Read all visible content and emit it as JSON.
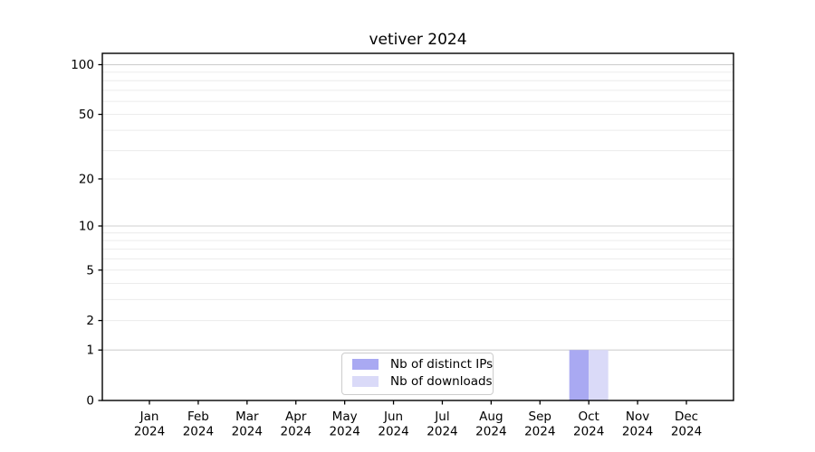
{
  "chart_data": {
    "type": "bar",
    "title": "vetiver 2024",
    "months": [
      "Jan",
      "Feb",
      "Mar",
      "Apr",
      "May",
      "Jun",
      "Jul",
      "Aug",
      "Sep",
      "Oct",
      "Nov",
      "Dec"
    ],
    "year": "2024",
    "series": [
      {
        "name": "Nb of distinct IPs",
        "color": "#a9a9f2",
        "values": [
          0,
          0,
          0,
          0,
          0,
          0,
          0,
          0,
          0,
          1,
          0,
          0
        ]
      },
      {
        "name": "Nb of downloads",
        "color": "#dadaf8",
        "values": [
          0,
          0,
          0,
          0,
          0,
          0,
          0,
          0,
          0,
          1,
          0,
          0
        ]
      }
    ],
    "yscale": "log1p",
    "ymax": 117,
    "ytick_labels": [
      "0",
      "1",
      "2",
      "5",
      "10",
      "20",
      "50",
      "100"
    ],
    "ytick_values": [
      0,
      1,
      2,
      5,
      10,
      20,
      50,
      100
    ],
    "grid_major_values": [
      1,
      10,
      100
    ],
    "grid_minor_values": [
      2,
      3,
      4,
      5,
      6,
      7,
      8,
      9,
      20,
      30,
      40,
      50,
      60,
      70,
      80,
      90
    ],
    "grid_major_color": "#cfcfcf",
    "grid_minor_color": "#ececec",
    "axis_color": "#000000",
    "text_color": "#000000",
    "legend_position": "bottom-center-inside",
    "grid": "horizontal-only"
  }
}
